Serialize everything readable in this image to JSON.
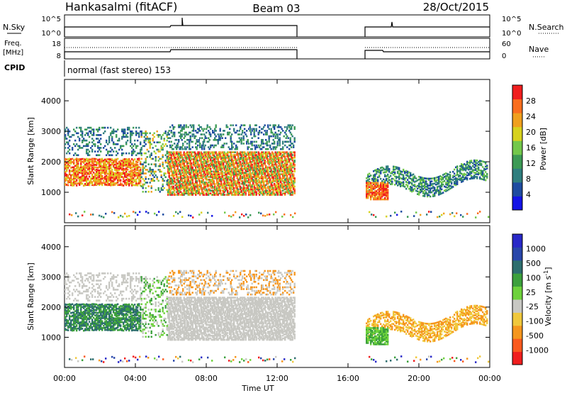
{
  "header": {
    "station": "Hankasalmi (fitACF)",
    "beam": "Beam 03",
    "date": "28/Oct/2015"
  },
  "status_panels": {
    "nsky": {
      "left_label": "N.Sky",
      "left_ticks": [
        "10^5",
        "10^0"
      ],
      "right_ticks": [
        "10^5",
        "10^0"
      ],
      "right_label": "N.Search"
    },
    "freq": {
      "left_label_top": "Freq.",
      "left_label_bottom": "[MHz]",
      "left_ticks": [
        "18",
        "8"
      ],
      "right_ticks": [
        "60",
        "0"
      ],
      "right_label": "Nave"
    },
    "cpid": {
      "left_label": "CPID",
      "mode_text": "normal (fast stereo) 153"
    }
  },
  "colors": {
    "power_scale": [
      "#1414e6",
      "#1e4ba0",
      "#2f7e7e",
      "#3c9a55",
      "#73c84b",
      "#d7d21e",
      "#f0a01e",
      "#fa6e1e",
      "#f01e1e"
    ],
    "velocity_scale": [
      "#f01e1e",
      "#fa5a1e",
      "#f5961e",
      "#f0c83c",
      "#c8c8c3",
      "#6ed23c",
      "#3ca03c",
      "#2d6e6e",
      "#2846aa",
      "#2828c8"
    ],
    "background": "#ffffff"
  },
  "chart_data": [
    {
      "type": "line",
      "name": "status",
      "x_range_ut_hours": [
        0,
        24
      ],
      "data_gap_ut_hours": [
        13.0,
        17.0
      ],
      "nsky_level": "approximately 10^3 to 10^4 throughout, with a spike near 06:40 and 18:20",
      "frequency_mhz_segments": [
        {
          "from": 0.0,
          "to": 6.0,
          "value": 11.5
        },
        {
          "from": 6.0,
          "to": 13.0,
          "value": 12.0
        },
        {
          "from": 17.0,
          "to": 18.0,
          "value": 12.0
        },
        {
          "from": 18.0,
          "to": 24.0,
          "value": 11.0
        }
      ],
      "nave_dotted": 45
    },
    {
      "type": "heatmap",
      "name": "power",
      "xlabel": "",
      "ylabel": "Slant Range [km]",
      "y_ticks": [
        "1000",
        "2000",
        "3000",
        "4000"
      ],
      "ylim": [
        0,
        4700
      ],
      "xlim_ut_hours": [
        0,
        24
      ],
      "colorbar_label": "Power [dB]",
      "colorbar_ticks": [
        "4",
        "8",
        "12",
        "16",
        "20",
        "24",
        "28"
      ],
      "colorbar_range": [
        0,
        32
      ]
    },
    {
      "type": "heatmap",
      "name": "velocity",
      "xlabel": "Time UT",
      "ylabel": "Slant Range [km]",
      "x_ticks": [
        "00:00",
        "04:00",
        "08:00",
        "12:00",
        "16:00",
        "20:00",
        "00:00"
      ],
      "y_ticks": [
        "1000",
        "2000",
        "3000",
        "4000"
      ],
      "ylim": [
        0,
        4700
      ],
      "xlim_ut_hours": [
        0,
        24
      ],
      "colorbar_label": "Velocity [m s^-1]",
      "colorbar_ticks": [
        "1000",
        "500",
        "100",
        "25",
        "-25",
        "-100",
        "-500",
        "-1000"
      ]
    }
  ]
}
